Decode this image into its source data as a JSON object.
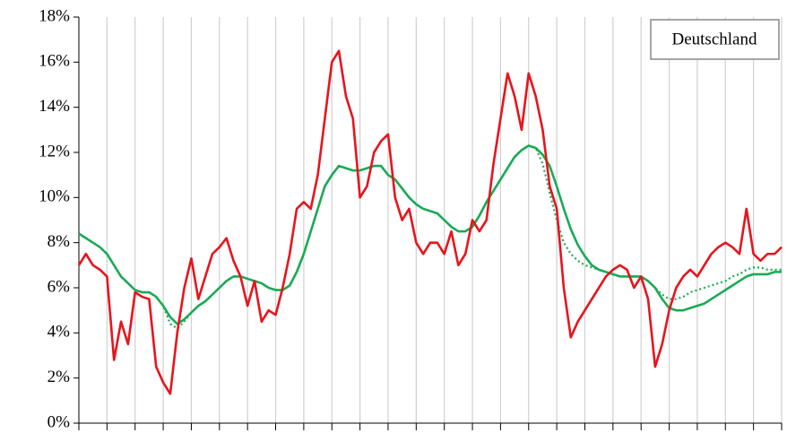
{
  "chart_data": {
    "type": "line",
    "title": "Deutschland",
    "categories": [
      null,
      null,
      null,
      null,
      null,
      null,
      null,
      null,
      null,
      null,
      null,
      null,
      null,
      null,
      null,
      null,
      null,
      null,
      null,
      null,
      null,
      null,
      null,
      null,
      null,
      null,
      null,
      null,
      null,
      null,
      null,
      null,
      null,
      null,
      null,
      null,
      null,
      null,
      null,
      null,
      null,
      null,
      null,
      null,
      null,
      null,
      null,
      null,
      null,
      null,
      null,
      null,
      null,
      null,
      null,
      null,
      null,
      null,
      null,
      null,
      null,
      null,
      null,
      null,
      null,
      null,
      null,
      null,
      null,
      null,
      null,
      null,
      null,
      null,
      null,
      null,
      null,
      null,
      null,
      null,
      null,
      null,
      null,
      null,
      null,
      null,
      null,
      null,
      null,
      null,
      null,
      null,
      null,
      null,
      null,
      null,
      null,
      null,
      null,
      null,
      null
    ],
    "series": [
      {
        "color": "#e8141c",
        "style": "solid",
        "values": [
          7.0,
          7.5,
          7.0,
          6.8,
          6.5,
          2.8,
          4.5,
          3.5,
          5.8,
          5.6,
          5.5,
          2.5,
          1.8,
          1.3,
          4.0,
          6.0,
          7.3,
          5.5,
          6.5,
          7.5,
          7.8,
          8.2,
          7.2,
          6.5,
          5.2,
          6.3,
          4.5,
          5.0,
          4.8,
          6.0,
          7.5,
          9.5,
          9.8,
          9.5,
          11.0,
          13.5,
          16.0,
          16.5,
          14.5,
          13.5,
          10.0,
          10.5,
          12.0,
          12.5,
          12.8,
          10.0,
          9.0,
          9.5,
          8.0,
          7.5,
          8.0,
          8.0,
          7.5,
          8.5,
          7.0,
          7.5,
          9.0,
          8.5,
          9.0,
          11.5,
          13.5,
          15.5,
          14.5,
          13.0,
          15.5,
          14.5,
          13.0,
          10.5,
          9.5,
          6.0,
          3.8,
          4.5,
          5.0,
          5.5,
          6.0,
          6.5,
          6.8,
          7.0,
          6.8,
          6.0,
          6.5,
          5.5,
          2.5,
          3.5,
          5.0,
          6.0,
          6.5,
          6.8,
          6.5,
          7.0,
          7.5,
          7.8,
          8.0,
          7.8,
          7.5,
          9.5,
          7.5,
          7.2,
          7.5,
          7.5,
          7.8
        ]
      },
      {
        "color": "#1aaa55",
        "style": "solid",
        "values": [
          8.4,
          8.2,
          8.0,
          7.8,
          7.5,
          7.0,
          6.5,
          6.2,
          5.9,
          5.8,
          5.8,
          5.6,
          5.2,
          4.7,
          4.4,
          4.6,
          4.9,
          5.2,
          5.4,
          5.7,
          6.0,
          6.3,
          6.5,
          6.5,
          6.4,
          6.3,
          6.2,
          6.0,
          5.9,
          5.9,
          6.1,
          6.7,
          7.5,
          8.5,
          9.5,
          10.5,
          11.0,
          11.4,
          11.3,
          11.2,
          11.2,
          11.3,
          11.4,
          11.4,
          11.0,
          10.8,
          10.4,
          10.0,
          9.7,
          9.5,
          9.4,
          9.3,
          9.0,
          8.7,
          8.5,
          8.5,
          8.7,
          9.2,
          9.8,
          10.3,
          10.8,
          11.3,
          11.8,
          12.1,
          12.3,
          12.2,
          11.9,
          11.4,
          10.5,
          9.5,
          8.6,
          7.9,
          7.4,
          7.0,
          6.8,
          6.7,
          6.6,
          6.5,
          6.5,
          6.5,
          6.5,
          6.3,
          6.0,
          5.5,
          5.1,
          5.0,
          5.0,
          5.1,
          5.2,
          5.3,
          5.5,
          5.7,
          5.9,
          6.1,
          6.3,
          6.5,
          6.6,
          6.6,
          6.6,
          6.7,
          6.7
        ]
      },
      {
        "color": "#1aaa55",
        "style": "dotted",
        "values": [
          8.4,
          8.2,
          8.0,
          7.8,
          7.5,
          7.0,
          6.5,
          6.2,
          5.9,
          5.8,
          5.8,
          5.6,
          5.2,
          4.4,
          4.2,
          4.5,
          4.9,
          5.2,
          5.4,
          5.7,
          6.0,
          6.3,
          6.5,
          6.5,
          6.4,
          6.3,
          6.2,
          6.0,
          5.9,
          5.9,
          6.1,
          6.7,
          7.5,
          8.5,
          9.5,
          10.5,
          11.0,
          11.4,
          11.3,
          11.2,
          11.2,
          11.3,
          11.4,
          11.4,
          11.0,
          10.8,
          10.4,
          10.0,
          9.7,
          9.5,
          9.4,
          9.3,
          9.0,
          8.7,
          8.5,
          8.5,
          8.7,
          9.2,
          9.8,
          10.3,
          10.8,
          11.3,
          11.8,
          12.1,
          12.3,
          12.2,
          11.5,
          10.2,
          9.0,
          8.0,
          7.5,
          7.2,
          7.0,
          6.9,
          6.8,
          6.7,
          6.6,
          6.5,
          6.5,
          6.5,
          6.5,
          6.3,
          6.0,
          5.7,
          5.5,
          5.5,
          5.6,
          5.8,
          5.9,
          6.0,
          6.1,
          6.2,
          6.3,
          6.5,
          6.6,
          6.8,
          6.9,
          6.9,
          6.8,
          6.8,
          6.8
        ]
      }
    ],
    "ylim": [
      0,
      18
    ],
    "yticks": [
      {
        "value": 0,
        "label": "0%"
      },
      {
        "value": 2,
        "label": "2%"
      },
      {
        "value": 4,
        "label": "4%"
      },
      {
        "value": 6,
        "label": "6%"
      },
      {
        "value": 8,
        "label": "8%"
      },
      {
        "value": 10,
        "label": "10%"
      },
      {
        "value": 12,
        "label": "12%"
      },
      {
        "value": 14,
        "label": "14%"
      },
      {
        "value": 16,
        "label": "16%"
      },
      {
        "value": 18,
        "label": "18%"
      }
    ],
    "grid": true
  }
}
